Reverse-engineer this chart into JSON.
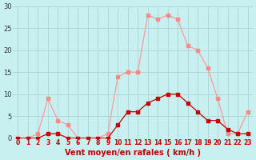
{
  "x": [
    0,
    1,
    2,
    3,
    4,
    5,
    6,
    7,
    8,
    9,
    10,
    11,
    12,
    13,
    14,
    15,
    16,
    17,
    18,
    19,
    20,
    21,
    22,
    23
  ],
  "rafales": [
    0,
    0,
    1,
    9,
    4,
    3,
    0,
    0,
    0,
    1,
    14,
    15,
    15,
    28,
    27,
    28,
    27,
    21,
    20,
    16,
    9,
    1,
    1,
    6
  ],
  "moyen": [
    0,
    0,
    0,
    1,
    1,
    0,
    0,
    0,
    0,
    0,
    3,
    6,
    6,
    8,
    9,
    10,
    10,
    8,
    6,
    4,
    4,
    2,
    1,
    1
  ],
  "bg_color": "#c8f0f0",
  "grid_color": "#b0d8d8",
  "line_color_rafales": "#ff9999",
  "line_color_moyen": "#cc0000",
  "marker_color_rafales": "#ff8888",
  "marker_color_moyen": "#cc0000",
  "xlabel": "Vent moyen/en rafales ( km/h )",
  "ylim": [
    0,
    30
  ],
  "yticks": [
    0,
    5,
    10,
    15,
    20,
    25,
    30
  ],
  "xlim": [
    -0.5,
    23.5
  ]
}
